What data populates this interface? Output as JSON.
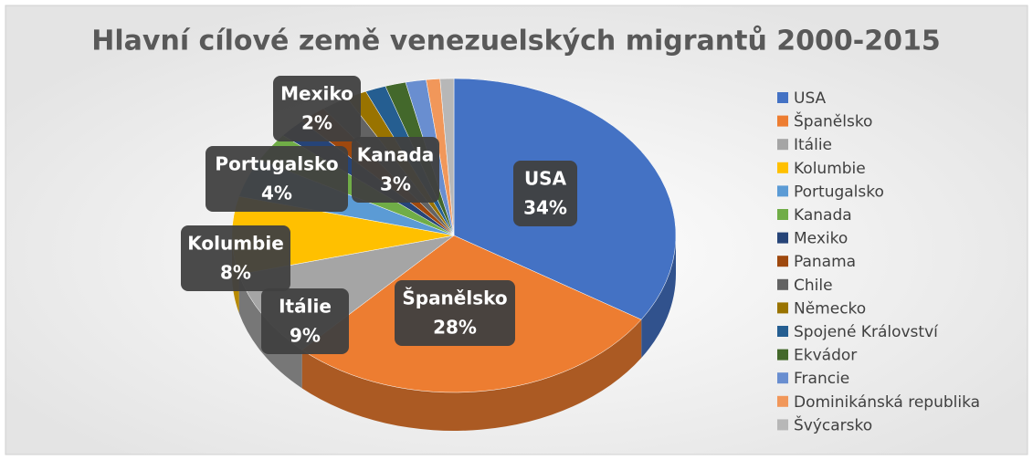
{
  "chart_data": {
    "type": "pie3d",
    "title": "Hlavní cílové země venezuelských migrantů 2000-2015",
    "categories": [
      "USA",
      "Španělsko",
      "Itálie",
      "Kolumbie",
      "Portugalsko",
      "Kanada",
      "Mexiko",
      "Panama",
      "Chile",
      "Německo",
      "Spojené Království",
      "Ekvádor",
      "Francie",
      "Dominikánská republika",
      "Švýcarsko"
    ],
    "values": [
      34,
      28,
      9,
      8,
      4,
      3,
      2,
      2,
      2,
      1.5,
      1.5,
      1.5,
      1.5,
      1,
      1
    ],
    "value_labels": [
      "34%",
      "28%",
      "9%",
      "8%",
      "4%",
      "3%",
      "2%",
      null,
      null,
      null,
      null,
      null,
      null,
      null,
      null
    ],
    "colors": [
      "#4472c4",
      "#ed7d31",
      "#a5a5a5",
      "#ffc000",
      "#5b9bd5",
      "#70ad47",
      "#264478",
      "#9e480e",
      "#636363",
      "#997300",
      "#255e91",
      "#43682b",
      "#698ed0",
      "#f1975a",
      "#b7b7b7"
    ],
    "legend": "right"
  }
}
